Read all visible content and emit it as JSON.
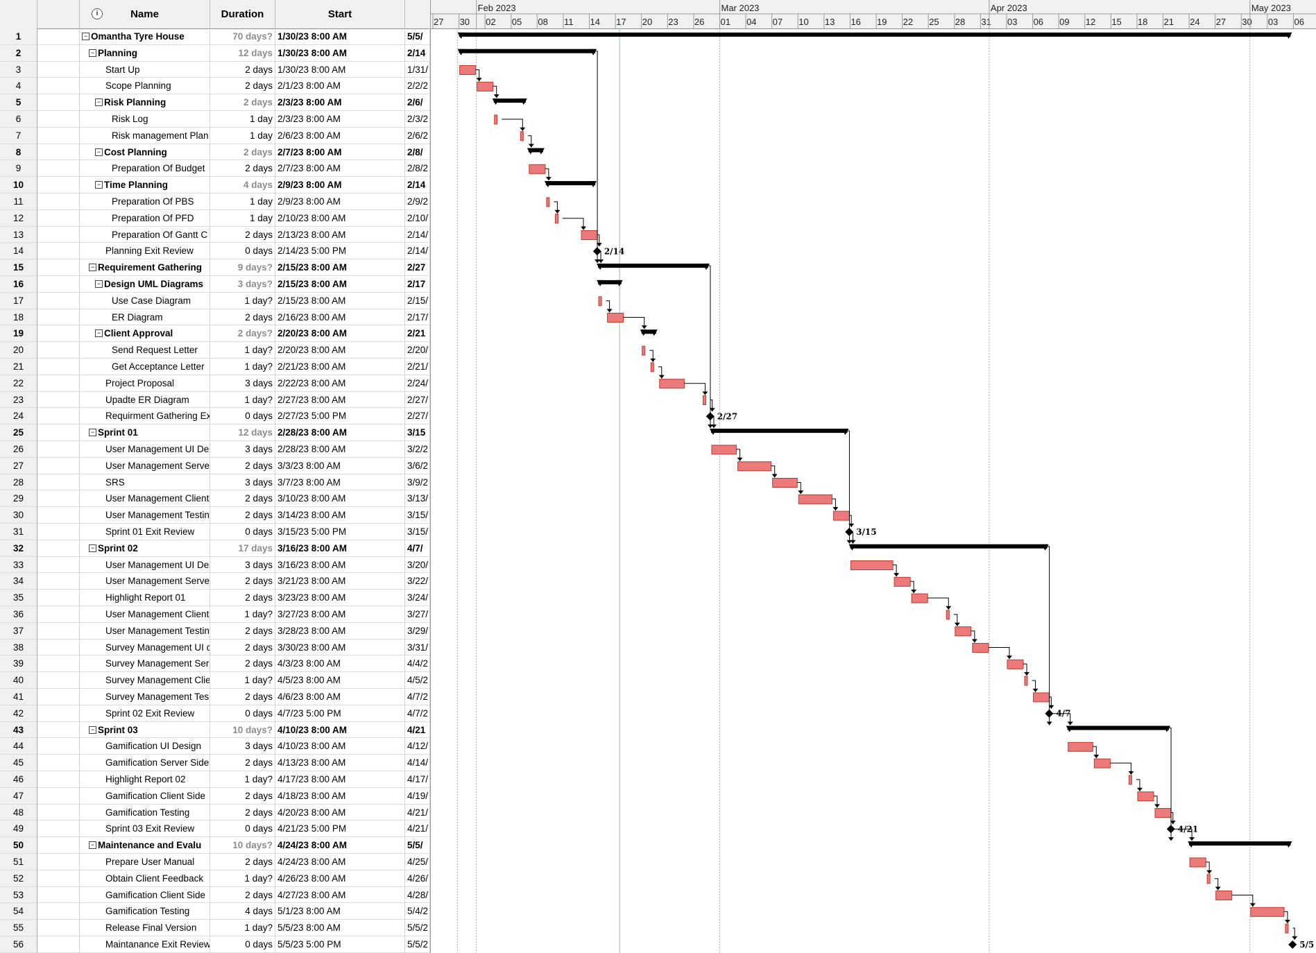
{
  "columns": {
    "id": "",
    "indicator_icon": "info-icon",
    "name": "Name",
    "duration": "Duration",
    "start": "Start"
  },
  "timeline": {
    "months": [
      {
        "label": "Feb 2023",
        "date": "2023-02-01"
      },
      {
        "label": "Mar 2023",
        "date": "2023-03-01"
      },
      {
        "label": "Apr 2023",
        "date": "2023-04-01"
      },
      {
        "label": "May 2023",
        "date": "2023-05-01"
      }
    ],
    "days": [
      {
        "label": "27",
        "date": "2023-01-27"
      },
      {
        "label": "30",
        "date": "2023-01-30"
      },
      {
        "label": "02",
        "date": "2023-02-02"
      },
      {
        "label": "05",
        "date": "2023-02-05"
      },
      {
        "label": "08",
        "date": "2023-02-08"
      },
      {
        "label": "11",
        "date": "2023-02-11"
      },
      {
        "label": "14",
        "date": "2023-02-14"
      },
      {
        "label": "17",
        "date": "2023-02-17"
      },
      {
        "label": "20",
        "date": "2023-02-20"
      },
      {
        "label": "23",
        "date": "2023-02-23"
      },
      {
        "label": "26",
        "date": "2023-02-26"
      },
      {
        "label": "01",
        "date": "2023-03-01"
      },
      {
        "label": "04",
        "date": "2023-03-04"
      },
      {
        "label": "07",
        "date": "2023-03-07"
      },
      {
        "label": "10",
        "date": "2023-03-10"
      },
      {
        "label": "13",
        "date": "2023-03-13"
      },
      {
        "label": "16",
        "date": "2023-03-16"
      },
      {
        "label": "19",
        "date": "2023-03-19"
      },
      {
        "label": "22",
        "date": "2023-03-22"
      },
      {
        "label": "25",
        "date": "2023-03-25"
      },
      {
        "label": "28",
        "date": "2023-03-28"
      },
      {
        "label": "31",
        "date": "2023-03-31"
      },
      {
        "label": "03",
        "date": "2023-04-03"
      },
      {
        "label": "06",
        "date": "2023-04-06"
      },
      {
        "label": "09",
        "date": "2023-04-09"
      },
      {
        "label": "12",
        "date": "2023-04-12"
      },
      {
        "label": "15",
        "date": "2023-04-15"
      },
      {
        "label": "18",
        "date": "2023-04-18"
      },
      {
        "label": "21",
        "date": "2023-04-21"
      },
      {
        "label": "24",
        "date": "2023-04-24"
      },
      {
        "label": "27",
        "date": "2023-04-27"
      },
      {
        "label": "30",
        "date": "2023-04-30"
      },
      {
        "label": "03",
        "date": "2023-05-03"
      },
      {
        "label": "06",
        "date": "2023-05-06"
      }
    ],
    "status_date": "2023-02-17"
  },
  "colors": {
    "task_bar": "#f08080",
    "task_bar_border": "#c0392b",
    "summary_bar": "#000000",
    "status_line": "#7ed07e"
  },
  "tasks": [
    {
      "id": "1",
      "name": "Omantha Tyre House",
      "level": 0,
      "summary": true,
      "duration": "70 days?",
      "start": "1/30/23 8:00 AM",
      "finish": "5/5/",
      "gs": "2023-01-30",
      "ge": "2023-05-06"
    },
    {
      "id": "2",
      "name": "Planning",
      "level": 1,
      "summary": true,
      "duration": "12 days",
      "start": "1/30/23 8:00 AM",
      "finish": "2/14",
      "gs": "2023-01-30",
      "ge": "2023-02-15"
    },
    {
      "id": "3",
      "name": "Start Up",
      "level": 2,
      "summary": false,
      "duration": "2 days",
      "start": "1/30/23 8:00 AM",
      "finish": "1/31/",
      "gs": "2023-01-30",
      "ge": "2023-02-01"
    },
    {
      "id": "4",
      "name": "Scope Planning",
      "level": 2,
      "summary": false,
      "duration": "2 days",
      "start": "2/1/23 8:00 AM",
      "finish": "2/2/2",
      "gs": "2023-02-01",
      "ge": "2023-02-03"
    },
    {
      "id": "5",
      "name": "Risk Planning",
      "level": 2,
      "summary": true,
      "duration": "2 days",
      "start": "2/3/23 8:00 AM",
      "finish": "2/6/",
      "gs": "2023-02-03",
      "ge": "2023-02-07"
    },
    {
      "id": "6",
      "name": "Risk Log",
      "level": 3,
      "summary": false,
      "duration": "1 day",
      "start": "2/3/23 8:00 AM",
      "finish": "2/3/2",
      "gs": "2023-02-03",
      "ge": "2023-02-04"
    },
    {
      "id": "7",
      "name": "Risk management Plan",
      "level": 3,
      "summary": false,
      "duration": "1 day",
      "start": "2/6/23 8:00 AM",
      "finish": "2/6/2",
      "gs": "2023-02-06",
      "ge": "2023-02-07"
    },
    {
      "id": "8",
      "name": "Cost Planning",
      "level": 2,
      "summary": true,
      "duration": "2 days",
      "start": "2/7/23 8:00 AM",
      "finish": "2/8/",
      "gs": "2023-02-07",
      "ge": "2023-02-09"
    },
    {
      "id": "9",
      "name": "Preparation Of Budget",
      "level": 3,
      "summary": false,
      "duration": "2 days",
      "start": "2/7/23 8:00 AM",
      "finish": "2/8/2",
      "gs": "2023-02-07",
      "ge": "2023-02-09"
    },
    {
      "id": "10",
      "name": "Time Planning",
      "level": 2,
      "summary": true,
      "duration": "4 days",
      "start": "2/9/23 8:00 AM",
      "finish": "2/14",
      "gs": "2023-02-09",
      "ge": "2023-02-15"
    },
    {
      "id": "11",
      "name": "Preparation Of PBS",
      "level": 3,
      "summary": false,
      "duration": "1 day",
      "start": "2/9/23 8:00 AM",
      "finish": "2/9/2",
      "gs": "2023-02-09",
      "ge": "2023-02-10"
    },
    {
      "id": "12",
      "name": "Preparation Of PFD",
      "level": 3,
      "summary": false,
      "duration": "1 day",
      "start": "2/10/23 8:00 AM",
      "finish": "2/10/",
      "gs": "2023-02-10",
      "ge": "2023-02-11"
    },
    {
      "id": "13",
      "name": "Preparation Of Gantt C",
      "level": 3,
      "summary": false,
      "duration": "2 days",
      "start": "2/13/23 8:00 AM",
      "finish": "2/14/",
      "gs": "2023-02-13",
      "ge": "2023-02-15"
    },
    {
      "id": "14",
      "name": "Planning Exit Review",
      "level": 2,
      "summary": false,
      "milestone": true,
      "label": "2/14",
      "duration": "0 days",
      "start": "2/14/23 5:00 PM",
      "finish": "2/14/",
      "gs": "2023-02-14",
      "ge": "2023-02-14"
    },
    {
      "id": "15",
      "name": "Requirement Gathering",
      "level": 1,
      "summary": true,
      "duration": "9 days?",
      "start": "2/15/23 8:00 AM",
      "finish": "2/27",
      "gs": "2023-02-15",
      "ge": "2023-02-28"
    },
    {
      "id": "16",
      "name": "Design UML Diagrams",
      "level": 2,
      "summary": true,
      "duration": "3 days?",
      "start": "2/15/23 8:00 AM",
      "finish": "2/17",
      "gs": "2023-02-15",
      "ge": "2023-02-18"
    },
    {
      "id": "17",
      "name": "Use Case Diagram",
      "level": 3,
      "summary": false,
      "duration": "1 day?",
      "start": "2/15/23 8:00 AM",
      "finish": "2/15/",
      "gs": "2023-02-15",
      "ge": "2023-02-16"
    },
    {
      "id": "18",
      "name": "ER Diagram",
      "level": 3,
      "summary": false,
      "duration": "2 days",
      "start": "2/16/23 8:00 AM",
      "finish": "2/17/",
      "gs": "2023-02-16",
      "ge": "2023-02-18"
    },
    {
      "id": "19",
      "name": "Client Approval",
      "level": 2,
      "summary": true,
      "duration": "2 days?",
      "start": "2/20/23 8:00 AM",
      "finish": "2/21",
      "gs": "2023-02-20",
      "ge": "2023-02-22"
    },
    {
      "id": "20",
      "name": "Send Request Letter",
      "level": 3,
      "summary": false,
      "duration": "1 day?",
      "start": "2/20/23 8:00 AM",
      "finish": "2/20/",
      "gs": "2023-02-20",
      "ge": "2023-02-21"
    },
    {
      "id": "21",
      "name": "Get Acceptance Letter",
      "level": 3,
      "summary": false,
      "duration": "1 day?",
      "start": "2/21/23 8:00 AM",
      "finish": "2/21/",
      "gs": "2023-02-21",
      "ge": "2023-02-22"
    },
    {
      "id": "22",
      "name": "Project Proposal",
      "level": 2,
      "summary": false,
      "duration": "3 days",
      "start": "2/22/23 8:00 AM",
      "finish": "2/24/",
      "gs": "2023-02-22",
      "ge": "2023-02-25"
    },
    {
      "id": "23",
      "name": "Upadte ER Diagram",
      "level": 2,
      "summary": false,
      "duration": "1 day?",
      "start": "2/27/23 8:00 AM",
      "finish": "2/27/",
      "gs": "2023-02-27",
      "ge": "2023-02-28"
    },
    {
      "id": "24",
      "name": "Requirment Gathering Ex",
      "level": 2,
      "summary": false,
      "milestone": true,
      "label": "2/27",
      "duration": "0 days",
      "start": "2/27/23 5:00 PM",
      "finish": "2/27/",
      "gs": "2023-02-27",
      "ge": "2023-02-27"
    },
    {
      "id": "25",
      "name": "Sprint 01",
      "level": 1,
      "summary": true,
      "duration": "12 days",
      "start": "2/28/23 8:00 AM",
      "finish": "3/15",
      "gs": "2023-02-28",
      "ge": "2023-03-16"
    },
    {
      "id": "26",
      "name": "User Management UI Des",
      "level": 2,
      "summary": false,
      "duration": "3 days",
      "start": "2/28/23 8:00 AM",
      "finish": "3/2/2",
      "gs": "2023-02-28",
      "ge": "2023-03-03"
    },
    {
      "id": "27",
      "name": "User Management Server",
      "level": 2,
      "summary": false,
      "duration": "2 days",
      "start": "3/3/23 8:00 AM",
      "finish": "3/6/2",
      "gs": "2023-03-03",
      "ge": "2023-03-07"
    },
    {
      "id": "28",
      "name": "SRS",
      "level": 2,
      "summary": false,
      "duration": "3 days",
      "start": "3/7/23 8:00 AM",
      "finish": "3/9/2",
      "gs": "2023-03-07",
      "ge": "2023-03-10"
    },
    {
      "id": "29",
      "name": "User Management Client",
      "level": 2,
      "summary": false,
      "duration": "2 days",
      "start": "3/10/23 8:00 AM",
      "finish": "3/13/",
      "gs": "2023-03-10",
      "ge": "2023-03-14"
    },
    {
      "id": "30",
      "name": "User Management Testin",
      "level": 2,
      "summary": false,
      "duration": "2 days",
      "start": "3/14/23 8:00 AM",
      "finish": "3/15/",
      "gs": "2023-03-14",
      "ge": "2023-03-16"
    },
    {
      "id": "31",
      "name": "Sprint 01 Exit Review",
      "level": 2,
      "summary": false,
      "milestone": true,
      "label": "3/15",
      "duration": "0 days",
      "start": "3/15/23 5:00 PM",
      "finish": "3/15/",
      "gs": "2023-03-15",
      "ge": "2023-03-15"
    },
    {
      "id": "32",
      "name": "Sprint 02",
      "level": 1,
      "summary": true,
      "duration": "17 days",
      "start": "3/16/23 8:00 AM",
      "finish": "4/7/",
      "gs": "2023-03-16",
      "ge": "2023-04-08"
    },
    {
      "id": "33",
      "name": "User Management UI Des",
      "level": 2,
      "summary": false,
      "duration": "3 days",
      "start": "3/16/23 8:00 AM",
      "finish": "3/20/",
      "gs": "2023-03-16",
      "ge": "2023-03-21"
    },
    {
      "id": "34",
      "name": "User Management Server",
      "level": 2,
      "summary": false,
      "duration": "2 days",
      "start": "3/21/23 8:00 AM",
      "finish": "3/22/",
      "gs": "2023-03-21",
      "ge": "2023-03-23"
    },
    {
      "id": "35",
      "name": "Highlight Report 01",
      "level": 2,
      "summary": false,
      "duration": "2 days",
      "start": "3/23/23 8:00 AM",
      "finish": "3/24/",
      "gs": "2023-03-23",
      "ge": "2023-03-25"
    },
    {
      "id": "36",
      "name": "User Management Client",
      "level": 2,
      "summary": false,
      "duration": "1 day?",
      "start": "3/27/23 8:00 AM",
      "finish": "3/27/",
      "gs": "2023-03-27",
      "ge": "2023-03-28"
    },
    {
      "id": "37",
      "name": "User Management Testin",
      "level": 2,
      "summary": false,
      "duration": "2 days",
      "start": "3/28/23 8:00 AM",
      "finish": "3/29/",
      "gs": "2023-03-28",
      "ge": "2023-03-30"
    },
    {
      "id": "38",
      "name": "Survey Management UI c",
      "level": 2,
      "summary": false,
      "duration": "2 days",
      "start": "3/30/23 8:00 AM",
      "finish": "3/31/",
      "gs": "2023-03-30",
      "ge": "2023-04-01"
    },
    {
      "id": "39",
      "name": "Survey Management Ser",
      "level": 2,
      "summary": false,
      "duration": "2 days",
      "start": "4/3/23 8:00 AM",
      "finish": "4/4/2",
      "gs": "2023-04-03",
      "ge": "2023-04-05"
    },
    {
      "id": "40",
      "name": "Survey Management Clie",
      "level": 2,
      "summary": false,
      "duration": "1 day?",
      "start": "4/5/23 8:00 AM",
      "finish": "4/5/2",
      "gs": "2023-04-05",
      "ge": "2023-04-06"
    },
    {
      "id": "41",
      "name": "Survey Management Tes",
      "level": 2,
      "summary": false,
      "duration": "2 days",
      "start": "4/6/23 8:00 AM",
      "finish": "4/7/2",
      "gs": "2023-04-06",
      "ge": "2023-04-08"
    },
    {
      "id": "42",
      "name": "Sprint 02  Exit Review",
      "level": 2,
      "summary": false,
      "milestone": true,
      "label": "4/7",
      "duration": "0 days",
      "start": "4/7/23 5:00 PM",
      "finish": "4/7/2",
      "gs": "2023-04-07",
      "ge": "2023-04-07"
    },
    {
      "id": "43",
      "name": "Sprint 03",
      "level": 1,
      "summary": true,
      "duration": "10 days?",
      "start": "4/10/23 8:00 AM",
      "finish": "4/21",
      "gs": "2023-04-10",
      "ge": "2023-04-22"
    },
    {
      "id": "44",
      "name": "Gamification UI Design",
      "level": 2,
      "summary": false,
      "duration": "3 days",
      "start": "4/10/23 8:00 AM",
      "finish": "4/12/",
      "gs": "2023-04-10",
      "ge": "2023-04-13"
    },
    {
      "id": "45",
      "name": "Gamification Server Side",
      "level": 2,
      "summary": false,
      "duration": "2 days",
      "start": "4/13/23 8:00 AM",
      "finish": "4/14/",
      "gs": "2023-04-13",
      "ge": "2023-04-15"
    },
    {
      "id": "46",
      "name": "Highlight Report 02",
      "level": 2,
      "summary": false,
      "duration": "1 day?",
      "start": "4/17/23 8:00 AM",
      "finish": "4/17/",
      "gs": "2023-04-17",
      "ge": "2023-04-18"
    },
    {
      "id": "47",
      "name": "Gamification Client Side",
      "level": 2,
      "summary": false,
      "duration": "2 days",
      "start": "4/18/23 8:00 AM",
      "finish": "4/19/",
      "gs": "2023-04-18",
      "ge": "2023-04-20"
    },
    {
      "id": "48",
      "name": "Gamification Testing",
      "level": 2,
      "summary": false,
      "duration": "2 days",
      "start": "4/20/23 8:00 AM",
      "finish": "4/21/",
      "gs": "2023-04-20",
      "ge": "2023-04-22"
    },
    {
      "id": "49",
      "name": "Sprint 03 Exit Review",
      "level": 2,
      "summary": false,
      "milestone": true,
      "label": "4/21",
      "duration": "0 days",
      "start": "4/21/23 5:00 PM",
      "finish": "4/21/",
      "gs": "2023-04-21",
      "ge": "2023-04-21"
    },
    {
      "id": "50",
      "name": "Maintenance and Evalu",
      "level": 1,
      "summary": true,
      "duration": "10 days?",
      "start": "4/24/23 8:00 AM",
      "finish": "5/5/",
      "gs": "2023-04-24",
      "ge": "2023-05-06"
    },
    {
      "id": "51",
      "name": "Prepare User Manual",
      "level": 2,
      "summary": false,
      "duration": "2 days",
      "start": "4/24/23 8:00 AM",
      "finish": "4/25/",
      "gs": "2023-04-24",
      "ge": "2023-04-26"
    },
    {
      "id": "52",
      "name": "Obtain Client Feedback",
      "level": 2,
      "summary": false,
      "duration": "1 day?",
      "start": "4/26/23 8:00 AM",
      "finish": "4/26/",
      "gs": "2023-04-26",
      "ge": "2023-04-27"
    },
    {
      "id": "53",
      "name": "Gamification Client Side",
      "level": 2,
      "summary": false,
      "duration": "2 days",
      "start": "4/27/23 8:00 AM",
      "finish": "4/28/",
      "gs": "2023-04-27",
      "ge": "2023-04-29"
    },
    {
      "id": "54",
      "name": "Gamification Testing",
      "level": 2,
      "summary": false,
      "duration": "4 days",
      "start": "5/1/23 8:00 AM",
      "finish": "5/4/2",
      "gs": "2023-05-01",
      "ge": "2023-05-05"
    },
    {
      "id": "55",
      "name": "Release Final Version",
      "level": 2,
      "summary": false,
      "duration": "1 day?",
      "start": "5/5/23 8:00 AM",
      "finish": "5/5/2",
      "gs": "2023-05-05",
      "ge": "2023-05-06"
    },
    {
      "id": "56",
      "name": "Maintanance Exit Review",
      "level": 2,
      "summary": false,
      "milestone": true,
      "label": "5/5",
      "duration": "0 days",
      "start": "5/5/23 5:00 PM",
      "finish": "5/5/2",
      "gs": "2023-05-05",
      "ge": "2023-05-05"
    }
  ]
}
